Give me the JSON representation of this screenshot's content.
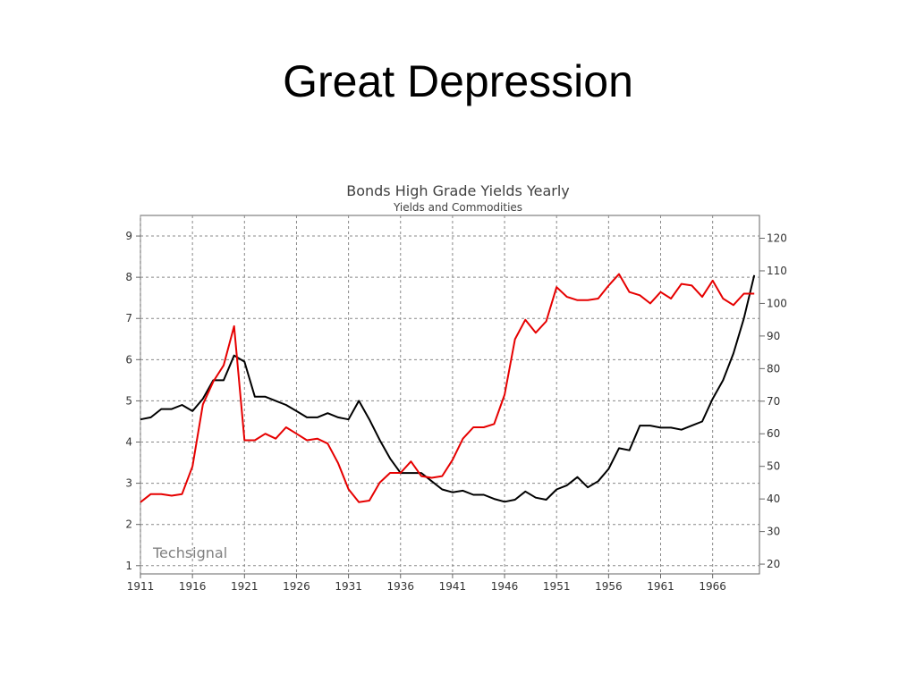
{
  "slide": {
    "title": "Great Depression"
  },
  "chart_data": {
    "type": "line",
    "title": "Bonds High Grade Yields Yearly",
    "subtitle": "Yields and Commodities",
    "watermark": "Techsignal",
    "x_tick_labels": [
      "1911",
      "1916",
      "1921",
      "1926",
      "1931",
      "1936",
      "1941",
      "1946",
      "1951",
      "1956",
      "1961",
      "1966"
    ],
    "xlim": [
      1911,
      1970.5
    ],
    "y_left": {
      "ylim": [
        0.8,
        9.5
      ],
      "ticks": [
        1,
        2,
        3,
        4,
        5,
        6,
        7,
        8,
        9
      ]
    },
    "y_right": {
      "ylim": [
        17,
        127
      ],
      "ticks": [
        20,
        30,
        40,
        50,
        60,
        70,
        80,
        90,
        100,
        110,
        120
      ]
    },
    "grid": true,
    "series": [
      {
        "axis": "left",
        "color": "#000000",
        "x": [
          1911,
          1912,
          1913,
          1914,
          1915,
          1916,
          1917,
          1918,
          1919,
          1920,
          1921,
          1922,
          1923,
          1924,
          1925,
          1926,
          1927,
          1928,
          1929,
          1930,
          1931,
          1932,
          1933,
          1934,
          1935,
          1936,
          1937,
          1938,
          1939,
          1940,
          1941,
          1942,
          1943,
          1944,
          1945,
          1946,
          1947,
          1948,
          1949,
          1950,
          1951,
          1952,
          1953,
          1954,
          1955,
          1956,
          1957,
          1958,
          1959,
          1960,
          1961,
          1962,
          1963,
          1964,
          1965,
          1966,
          1967,
          1968,
          1969,
          1970
        ],
        "values": [
          4.55,
          4.6,
          4.8,
          4.8,
          4.9,
          4.75,
          5.05,
          5.5,
          5.5,
          6.1,
          5.95,
          5.1,
          5.1,
          5.0,
          4.9,
          4.75,
          4.6,
          4.6,
          4.7,
          4.6,
          4.55,
          5.0,
          4.55,
          4.05,
          3.6,
          3.25,
          3.25,
          3.25,
          3.05,
          2.85,
          2.78,
          2.82,
          2.72,
          2.72,
          2.62,
          2.55,
          2.6,
          2.8,
          2.65,
          2.6,
          2.85,
          2.95,
          3.15,
          2.9,
          3.05,
          3.35,
          3.85,
          3.8,
          4.4,
          4.4,
          4.35,
          4.35,
          4.3,
          4.4,
          4.5,
          5.05,
          5.5,
          6.15,
          7.0,
          8.05
        ]
      },
      {
        "axis": "right",
        "color": "#e60000",
        "x": [
          1911,
          1912,
          1913,
          1914,
          1915,
          1916,
          1917,
          1918,
          1919,
          1920,
          1921,
          1922,
          1923,
          1924,
          1925,
          1926,
          1927,
          1928,
          1929,
          1930,
          1931,
          1932,
          1933,
          1934,
          1935,
          1936,
          1937,
          1938,
          1939,
          1940,
          1941,
          1942,
          1943,
          1944,
          1945,
          1946,
          1947,
          1948,
          1949,
          1950,
          1951,
          1952,
          1953,
          1954,
          1955,
          1956,
          1957,
          1958,
          1959,
          1960,
          1961,
          1962,
          1963,
          1964,
          1965,
          1966,
          1967,
          1968,
          1969,
          1970
        ],
        "values": [
          39,
          41.5,
          41.5,
          41,
          41.5,
          50,
          69,
          76,
          81,
          93,
          58,
          58,
          60,
          58.5,
          62,
          60,
          58,
          58.5,
          57,
          51,
          43,
          39,
          39.5,
          45,
          48,
          48,
          51.5,
          47,
          46.5,
          47,
          52,
          58.5,
          62,
          62,
          63,
          72,
          89,
          95,
          91,
          94.5,
          105,
          102,
          101,
          101,
          101.5,
          105.5,
          109,
          103.5,
          102.5,
          100,
          103.5,
          101.5,
          106,
          105.5,
          102,
          107,
          101.5,
          99.5,
          103,
          103
        ]
      }
    ]
  }
}
